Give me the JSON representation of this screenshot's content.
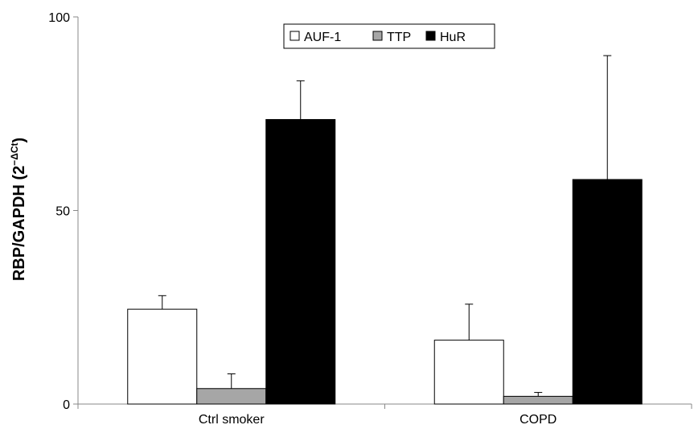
{
  "chart_data": {
    "type": "bar",
    "title": "",
    "xlabel": "",
    "ylabel": "RBP/GAPDH (2",
    "ylabel_superscript": "−ΔCt",
    "ylabel_close": ")",
    "ylim": [
      0,
      100
    ],
    "yticks": [
      0,
      50,
      100
    ],
    "ytick_labels": [
      "0",
      "50",
      "100"
    ],
    "grid": false,
    "legend_position": "top-center",
    "categories": [
      "Ctrl smoker",
      "COPD"
    ],
    "series": [
      {
        "name": "AUF-1",
        "color": "#ffffff",
        "values": [
          24.5,
          16.5
        ],
        "errors": [
          3.5,
          9.3
        ]
      },
      {
        "name": "TTP",
        "color": "#a6a6a6",
        "values": [
          4.0,
          2.0
        ],
        "errors": [
          3.8,
          1.0
        ]
      },
      {
        "name": "HuR",
        "color": "#000000",
        "values": [
          73.5,
          58.0
        ],
        "errors": [
          10.0,
          32.0
        ]
      }
    ]
  }
}
